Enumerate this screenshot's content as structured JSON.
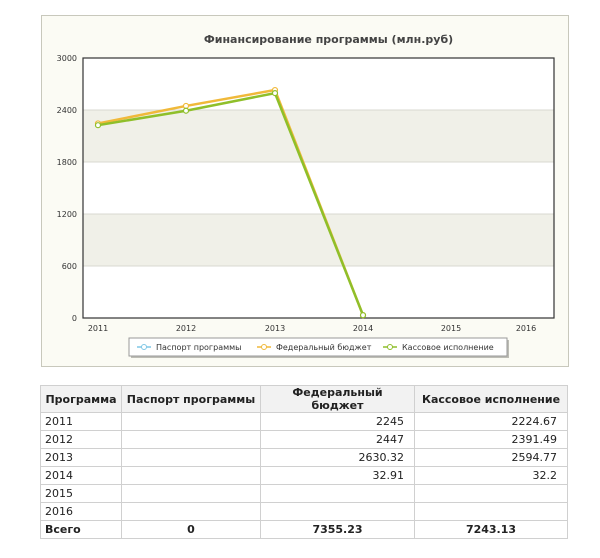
{
  "chart_data": {
    "type": "line",
    "title": "Финансирование программы (млн.руб)",
    "categories": [
      "2011",
      "2012",
      "2013",
      "2014",
      "2015",
      "2016"
    ],
    "ylim": [
      0,
      3000
    ],
    "yticks": [
      "0",
      "600",
      "1200",
      "1800",
      "2400",
      "3000"
    ],
    "grid": true,
    "legend_position": "bottom",
    "series": [
      {
        "name": "Паспорт программы",
        "color": "#7fc7e6",
        "values": [
          null,
          null,
          null,
          null,
          null,
          null
        ]
      },
      {
        "name": "Федеральный бюджет",
        "color": "#f0b93a",
        "values": [
          2245,
          2447,
          2630.32,
          32.91,
          null,
          null
        ]
      },
      {
        "name": "Кассовое исполнение",
        "color": "#8fbf2a",
        "values": [
          2224.67,
          2391.49,
          2594.77,
          32.2,
          null,
          null
        ]
      }
    ]
  },
  "table": {
    "headers": [
      "Программа",
      "Паспорт программы",
      "Федеральный бюджет",
      "Кассовое исполнение"
    ],
    "rows": [
      [
        "2011",
        "",
        "2245",
        "2224.67"
      ],
      [
        "2012",
        "",
        "2447",
        "2391.49"
      ],
      [
        "2013",
        "",
        "2630.32",
        "2594.77"
      ],
      [
        "2014",
        "",
        "32.91",
        "32.2"
      ],
      [
        "2015",
        "",
        "",
        ""
      ],
      [
        "2016",
        "",
        "",
        ""
      ]
    ],
    "total": [
      "Всего",
      "0",
      "7355.23",
      "7243.13"
    ]
  }
}
